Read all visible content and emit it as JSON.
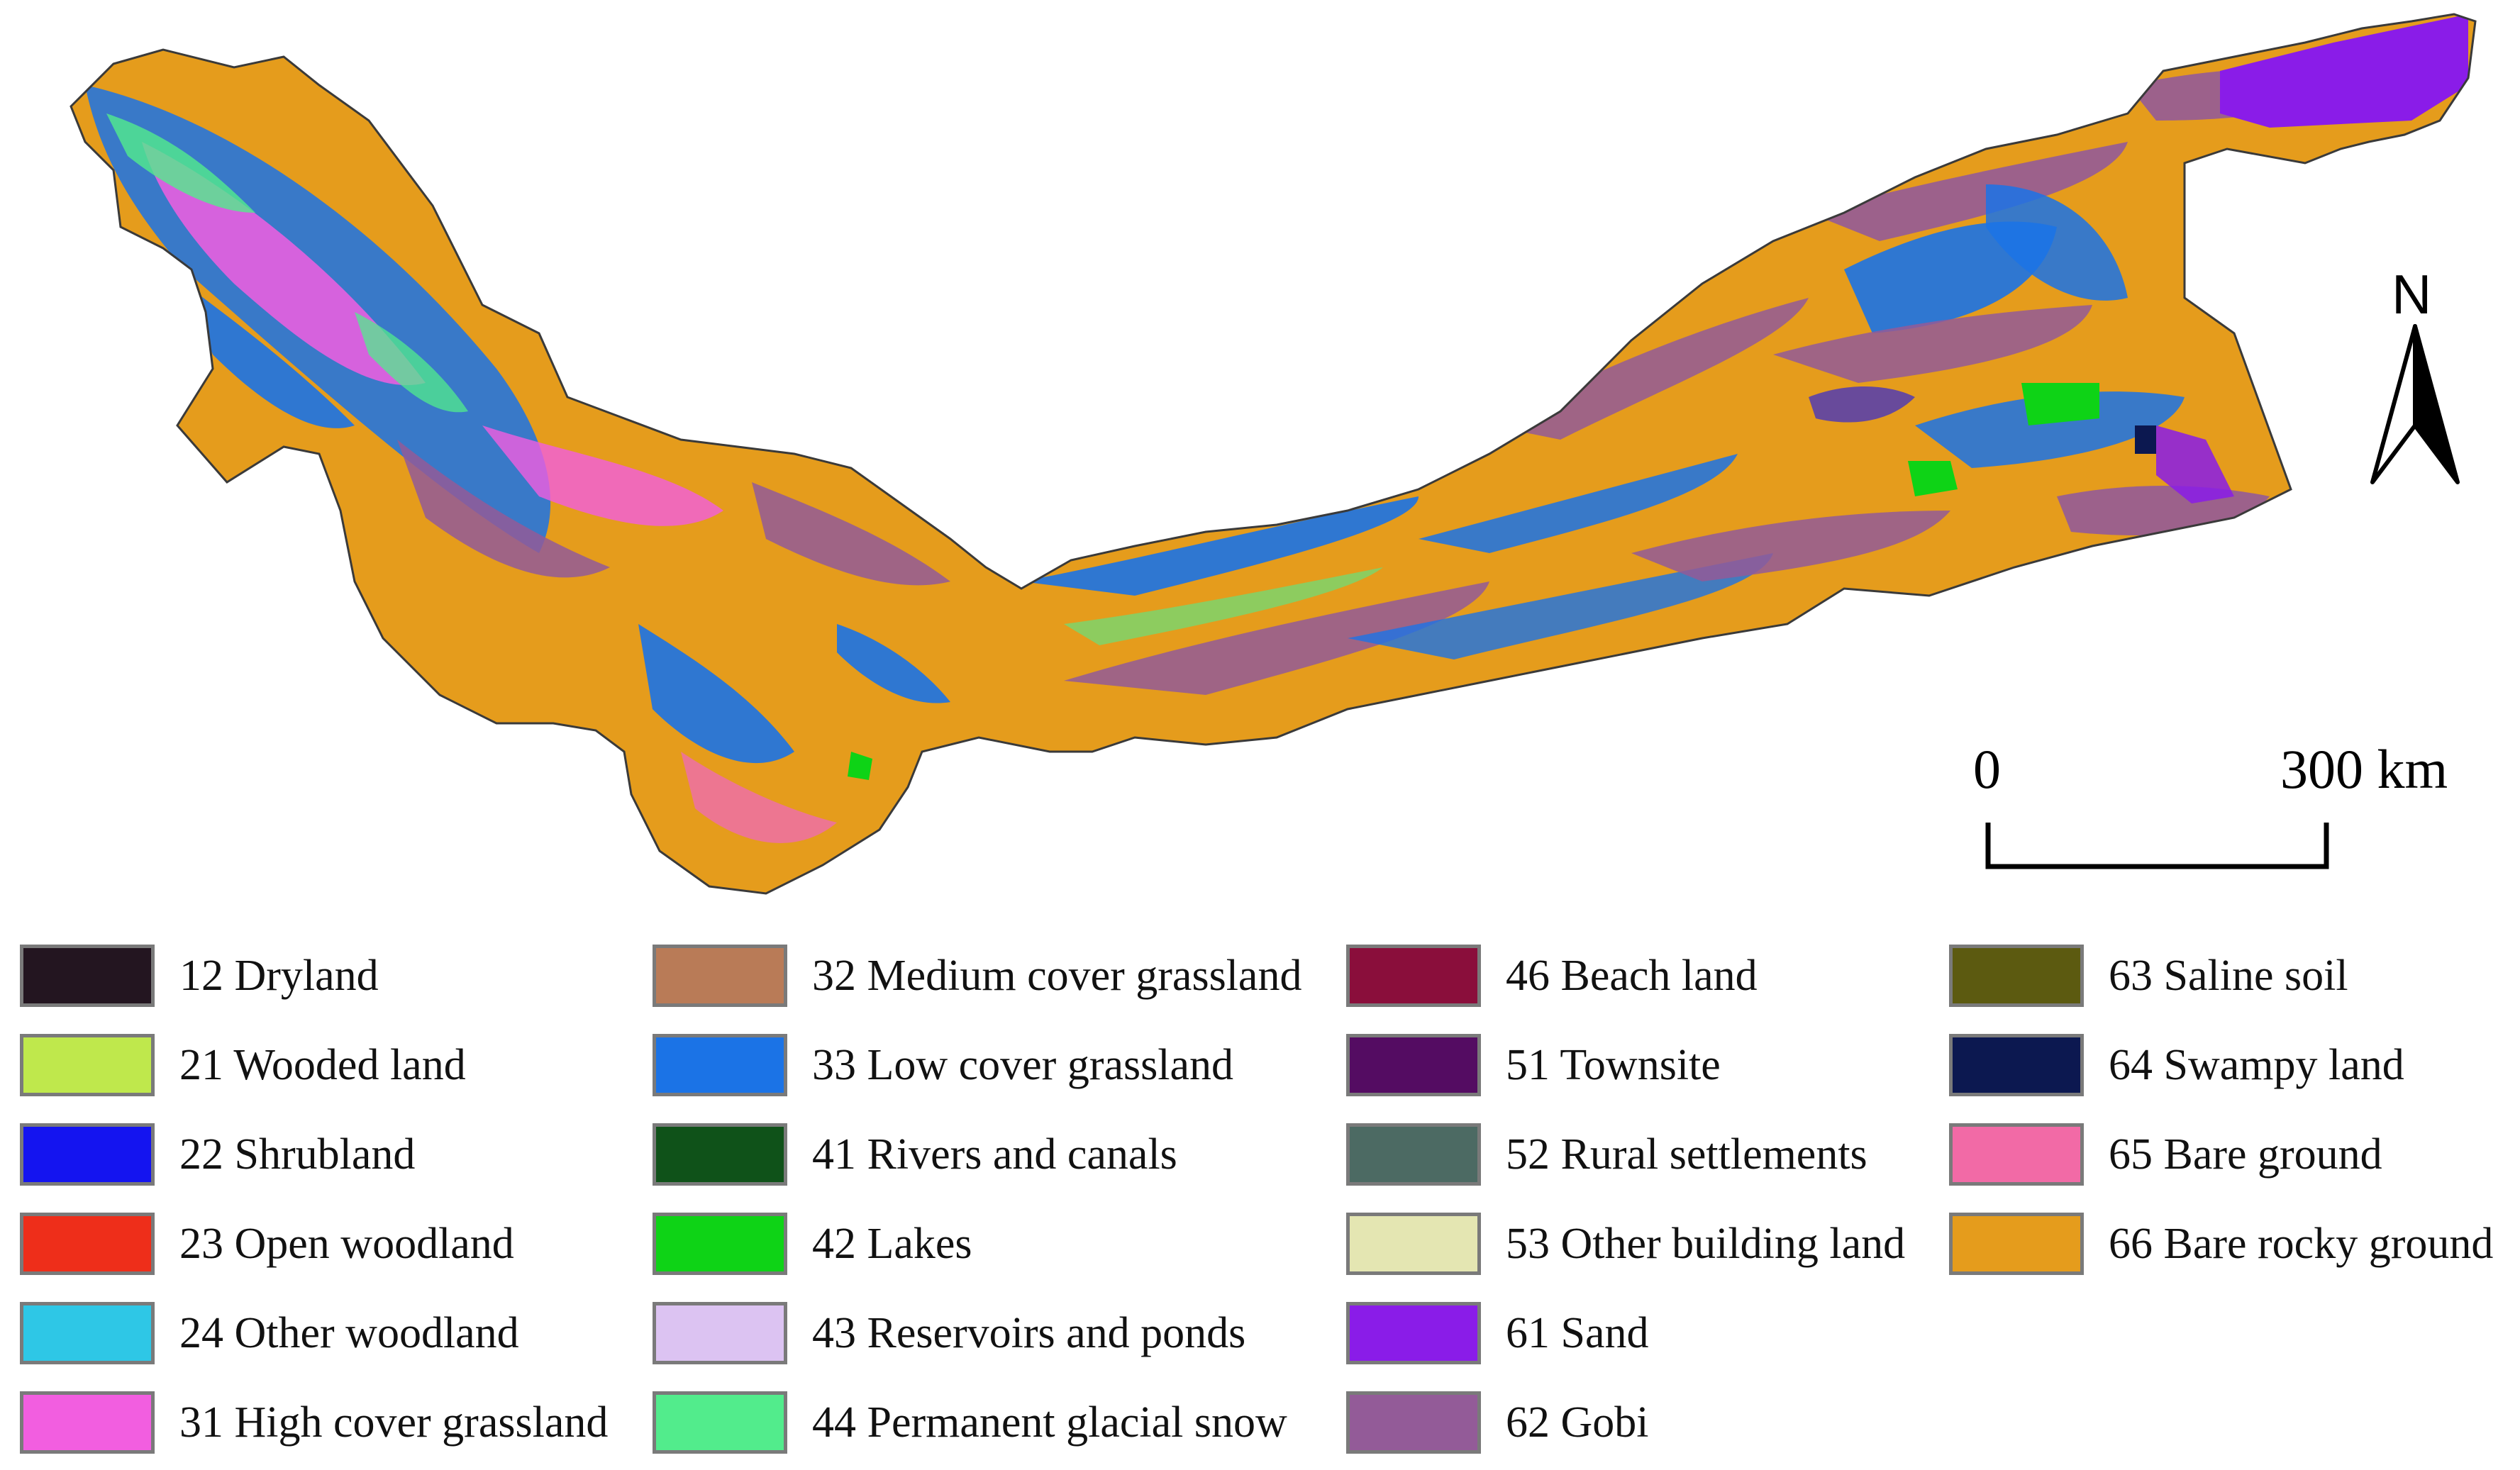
{
  "map": {
    "north_label": "N",
    "scale": {
      "start_label": "0",
      "end_label": "300 km"
    }
  },
  "legend": {
    "columns": [
      [
        {
          "code_label": "12 Dryland",
          "color": "#231520"
        },
        {
          "code_label": "21 Wooded land",
          "color": "#bfe84c"
        },
        {
          "code_label": "22 Shrubland",
          "color": "#1414f0"
        },
        {
          "code_label": "23 Open woodland",
          "color": "#ee2e1a"
        },
        {
          "code_label": "24 Other woodland",
          "color": "#2ec7e6"
        },
        {
          "code_label": "31 High cover grassland",
          "color": "#f25ee0"
        }
      ],
      [
        {
          "code_label": "32 Medium cover grassland",
          "color": "#b97b57"
        },
        {
          "code_label": "33 Low cover grassland",
          "color": "#1b73e6"
        },
        {
          "code_label": "41 Rivers and canals",
          "color": "#0f5219"
        },
        {
          "code_label": "42 Lakes",
          "color": "#0ed316"
        },
        {
          "code_label": "43 Reservoirs and ponds",
          "color": "#dcc3f2"
        },
        {
          "code_label": "44 Permanent glacial snow",
          "color": "#52ec8c"
        }
      ],
      [
        {
          "code_label": "46 Beach land",
          "color": "#8a0e3b"
        },
        {
          "code_label": "51 Townsite",
          "color": "#540c62"
        },
        {
          "code_label": "52 Rural settlements",
          "color": "#4c6a63"
        },
        {
          "code_label": "53 Other building land",
          "color": "#e4e6b2"
        },
        {
          "code_label": "61 Sand",
          "color": "#8a1ce8"
        },
        {
          "code_label": "62 Gobi",
          "color": "#935b98"
        }
      ],
      [
        {
          "code_label": "63 Saline soil",
          "color": "#5c5a10"
        },
        {
          "code_label": "64 Swampy land",
          "color": "#0c1850"
        },
        {
          "code_label": "65 Bare ground",
          "color": "#f26aa6"
        },
        {
          "code_label": "66 Bare rocky ground",
          "color": "#e59c1c"
        }
      ]
    ]
  }
}
